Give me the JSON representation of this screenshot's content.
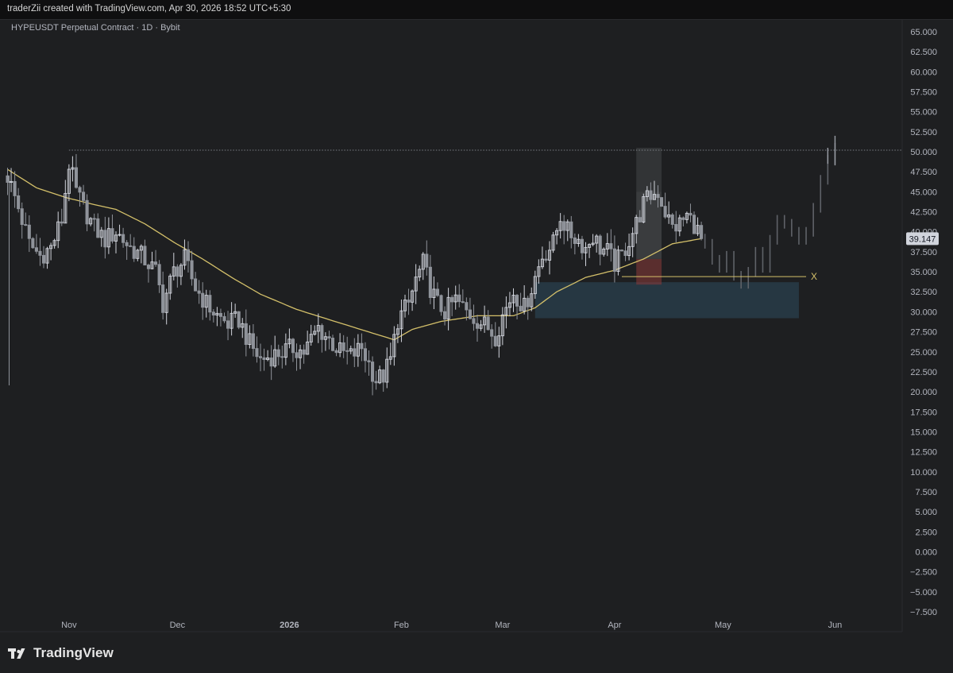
{
  "header": {
    "attribution": "traderZii created with TradingView.com, Apr 30, 2026 18:52 UTC+5:30"
  },
  "footer": {
    "brand": "TradingView"
  },
  "colors": {
    "background": "#1e1f21",
    "candle_up": "#d1d4dc",
    "candle_down": "#8f939a",
    "projection": "#5f6268",
    "ma_line": "#d4c06a",
    "demand_zone": "#2d4a5e",
    "price_label_bg": "#d1d4dc",
    "price_label_text": "#131722"
  },
  "chart_data": {
    "type": "candlestick",
    "title": "HYPEUSDT Perpetual Contract · 1D · Bybit",
    "ylim": [
      -7.5,
      65
    ],
    "y_ticks": [
      "65.000",
      "62.500",
      "60.000",
      "57.500",
      "55.000",
      "52.500",
      "50.000",
      "47.500",
      "45.000",
      "42.500",
      "40.000",
      "37.500",
      "35.000",
      "32.500",
      "30.000",
      "27.500",
      "25.000",
      "22.500",
      "20.000",
      "17.500",
      "15.000",
      "12.500",
      "10.000",
      "7.500",
      "5.000",
      "2.500",
      "0.000",
      "−2.500",
      "−5.000",
      "−7.500"
    ],
    "x_ticks": [
      {
        "label": "Nov",
        "day": 17
      },
      {
        "label": "Dec",
        "day": 47
      },
      {
        "label": "2026",
        "day": 78,
        "bold": true
      },
      {
        "label": "Feb",
        "day": 109
      },
      {
        "label": "Mar",
        "day": 137
      },
      {
        "label": "Apr",
        "day": 168
      },
      {
        "label": "May",
        "day": 198
      },
      {
        "label": "Jun",
        "day": 229
      }
    ],
    "last_price": "39.147",
    "last_price_value": 39.147,
    "key_points": [
      [
        0,
        47.0
      ],
      [
        3,
        43.0
      ],
      [
        6,
        38.5
      ],
      [
        9,
        37.0
      ],
      [
        12,
        38.0
      ],
      [
        15,
        41.5
      ],
      [
        17,
        48.5
      ],
      [
        19,
        45.0
      ],
      [
        21,
        43.0
      ],
      [
        24,
        40.5
      ],
      [
        27,
        39.0
      ],
      [
        30,
        40.0
      ],
      [
        34,
        38.0
      ],
      [
        37,
        37.0
      ],
      [
        41,
        35.0
      ],
      [
        43,
        31.0
      ],
      [
        46,
        35.0
      ],
      [
        49,
        36.5
      ],
      [
        52,
        33.0
      ],
      [
        55,
        31.0
      ],
      [
        58,
        29.5
      ],
      [
        61,
        28.5
      ],
      [
        64,
        29.0
      ],
      [
        67,
        26.0
      ],
      [
        70,
        24.0
      ],
      [
        73,
        24.5
      ],
      [
        76,
        25.0
      ],
      [
        79,
        25.5
      ],
      [
        82,
        25.0
      ],
      [
        84,
        26.5
      ],
      [
        86,
        28.0
      ],
      [
        89,
        26.5
      ],
      [
        92,
        25.0
      ],
      [
        95,
        24.5
      ],
      [
        98,
        25.5
      ],
      [
        100,
        23.5
      ],
      [
        102,
        21.5
      ],
      [
        104,
        22.0
      ],
      [
        106,
        24.0
      ],
      [
        108,
        29.0
      ],
      [
        111,
        31.0
      ],
      [
        113,
        34.0
      ],
      [
        115,
        36.0
      ],
      [
        117,
        33.0
      ],
      [
        119,
        31.0
      ],
      [
        121,
        30.0
      ],
      [
        124,
        31.5
      ],
      [
        127,
        30.0
      ],
      [
        130,
        29.0
      ],
      [
        133,
        28.0
      ],
      [
        135,
        27.0
      ],
      [
        137,
        29.5
      ],
      [
        140,
        32.5
      ],
      [
        143,
        30.5
      ],
      [
        145,
        33.0
      ],
      [
        148,
        37.0
      ],
      [
        151,
        38.5
      ],
      [
        153,
        42.0
      ],
      [
        155,
        40.0
      ],
      [
        158,
        39.0
      ],
      [
        160,
        38.0
      ],
      [
        162,
        39.5
      ],
      [
        164,
        38.0
      ],
      [
        166,
        37.5
      ],
      [
        168,
        36.0
      ],
      [
        170,
        37.0
      ],
      [
        172,
        39.0
      ],
      [
        174,
        41.0
      ],
      [
        176,
        43.5
      ],
      [
        178,
        44.5
      ],
      [
        180,
        45.0
      ],
      [
        182,
        42.5
      ],
      [
        184,
        40.5
      ],
      [
        186,
        41.0
      ],
      [
        188,
        42.0
      ],
      [
        190,
        41.0
      ],
      [
        192,
        39.147
      ]
    ],
    "projection": [
      [
        193,
        38.5
      ],
      [
        195,
        36.5
      ],
      [
        197,
        35.5
      ],
      [
        199,
        37.0
      ],
      [
        201,
        34.5
      ],
      [
        203,
        33.5
      ],
      [
        205,
        35.0
      ],
      [
        207,
        37.5
      ],
      [
        209,
        35.5
      ],
      [
        211,
        39.0
      ],
      [
        213,
        41.5
      ],
      [
        215,
        41.0
      ],
      [
        217,
        40.0
      ],
      [
        219,
        39.0
      ],
      [
        221,
        40.0
      ],
      [
        223,
        43.0
      ],
      [
        225,
        46.5
      ],
      [
        227,
        49.0
      ],
      [
        229,
        50.5
      ]
    ],
    "ma_points": [
      [
        0,
        47.8
      ],
      [
        8,
        45.5
      ],
      [
        16,
        44.3
      ],
      [
        24,
        43.4
      ],
      [
        30,
        42.8
      ],
      [
        38,
        41.0
      ],
      [
        46,
        38.7
      ],
      [
        54,
        36.6
      ],
      [
        62,
        34.3
      ],
      [
        70,
        32.2
      ],
      [
        80,
        30.3
      ],
      [
        92,
        28.6
      ],
      [
        102,
        27.2
      ],
      [
        107,
        26.5
      ],
      [
        112,
        27.8
      ],
      [
        120,
        28.8
      ],
      [
        130,
        29.5
      ],
      [
        140,
        29.5
      ],
      [
        146,
        30.5
      ],
      [
        152,
        32.5
      ],
      [
        160,
        34.3
      ],
      [
        168,
        35.2
      ],
      [
        176,
        36.6
      ],
      [
        184,
        38.5
      ],
      [
        192,
        39.147
      ]
    ],
    "annotations": {
      "resistance_level": 50.2,
      "resistance_from_day": 17,
      "demand_zone": {
        "from_day": 146,
        "to_day": 219,
        "top": 33.7,
        "bottom": 29.2
      },
      "long_position": {
        "from_day": 174,
        "to_day": 181,
        "target": 50.5,
        "entry": 36.6,
        "stop": 33.4
      },
      "liquidity_line": {
        "from_day": 170,
        "to_day": 221,
        "level": 34.4,
        "marker": "X"
      }
    }
  }
}
